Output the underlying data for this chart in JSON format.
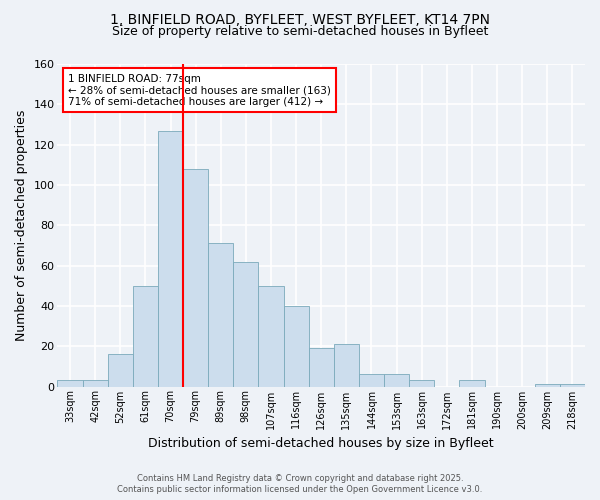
{
  "title1": "1, BINFIELD ROAD, BYFLEET, WEST BYFLEET, KT14 7PN",
  "title2": "Size of property relative to semi-detached houses in Byfleet",
  "xlabel": "Distribution of semi-detached houses by size in Byfleet",
  "ylabel": "Number of semi-detached properties",
  "categories": [
    "33sqm",
    "42sqm",
    "52sqm",
    "61sqm",
    "70sqm",
    "79sqm",
    "89sqm",
    "98sqm",
    "107sqm",
    "116sqm",
    "126sqm",
    "135sqm",
    "144sqm",
    "153sqm",
    "163sqm",
    "172sqm",
    "181sqm",
    "190sqm",
    "200sqm",
    "209sqm",
    "218sqm"
  ],
  "values": [
    3,
    3,
    16,
    50,
    127,
    108,
    71,
    62,
    50,
    40,
    19,
    21,
    6,
    6,
    3,
    0,
    3,
    0,
    0,
    1,
    1
  ],
  "bar_color": "#ccdded",
  "bar_edge_color": "#7aaabb",
  "vline_color": "red",
  "annotation_title": "1 BINFIELD ROAD: 77sqm",
  "annotation_line1": "← 28% of semi-detached houses are smaller (163)",
  "annotation_line2": "71% of semi-detached houses are larger (412) →",
  "annotation_box_color": "white",
  "annotation_box_edge": "red",
  "footer1": "Contains HM Land Registry data © Crown copyright and database right 2025.",
  "footer2": "Contains public sector information licensed under the Open Government Licence v3.0.",
  "ylim": [
    0,
    160
  ],
  "yticks": [
    0,
    20,
    40,
    60,
    80,
    100,
    120,
    140,
    160
  ],
  "bg_color": "#eef2f7",
  "grid_color": "white",
  "title1_fontsize": 10,
  "title2_fontsize": 9
}
